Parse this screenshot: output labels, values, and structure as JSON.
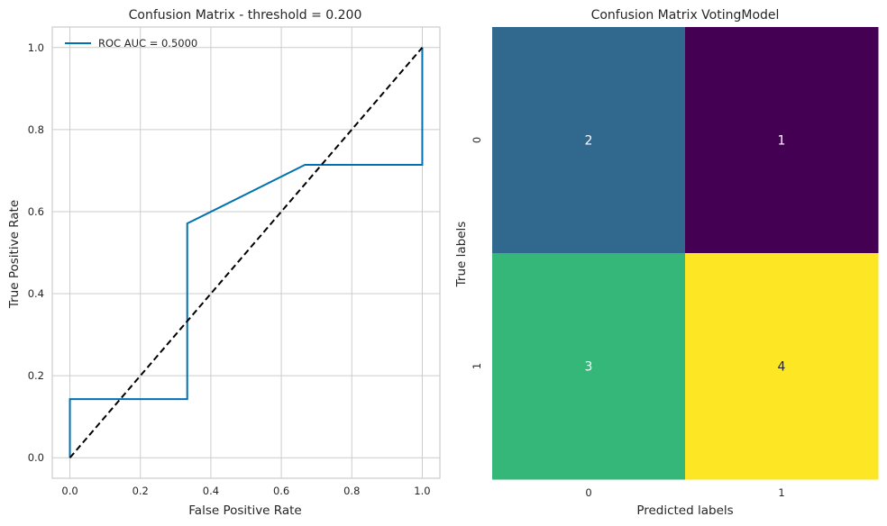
{
  "chart_data": [
    {
      "type": "line",
      "title": "Confusion Matrix - threshold = 0.200",
      "xlabel": "False Positive Rate",
      "ylabel": "True Positive Rate",
      "xlim": [
        -0.05,
        1.05
      ],
      "ylim": [
        -0.05,
        1.05
      ],
      "xticks": [
        0.0,
        0.2,
        0.4,
        0.6,
        0.8,
        1.0
      ],
      "yticks": [
        0.0,
        0.2,
        0.4,
        0.6,
        0.8,
        1.0
      ],
      "tick_labels": [
        "0.0",
        "0.2",
        "0.4",
        "0.6",
        "0.8",
        "1.0"
      ],
      "grid": true,
      "legend_position": "top-left",
      "series": [
        {
          "name": "ROC AUC = 0.5000",
          "color": "#0072B2",
          "x": [
            0.0,
            0.0,
            0.333,
            0.333,
            0.667,
            1.0,
            1.0
          ],
          "y": [
            0.0,
            0.143,
            0.143,
            0.571,
            0.714,
            0.714,
            1.0
          ]
        },
        {
          "color": "#000000",
          "style": "dashed",
          "x": [
            0.0,
            1.0
          ],
          "y": [
            0.0,
            1.0
          ]
        }
      ]
    },
    {
      "type": "heatmap",
      "title": "Confusion Matrix VotingModel",
      "xlabel": "Predicted labels",
      "ylabel": "True labels",
      "xticklabels": [
        "0",
        "1"
      ],
      "yticklabels": [
        "0",
        "1"
      ],
      "values": [
        [
          2,
          1
        ],
        [
          3,
          4
        ]
      ],
      "cell_labels": [
        [
          "2",
          "1"
        ],
        [
          "3",
          "4"
        ]
      ],
      "colormap": "viridis",
      "colors": [
        [
          "#31688e",
          "#440154"
        ],
        [
          "#35b779",
          "#fde725"
        ]
      ],
      "text_colors": [
        [
          "#ffffff",
          "#ffffff"
        ],
        [
          "#ffffff",
          "#262626"
        ]
      ]
    }
  ]
}
